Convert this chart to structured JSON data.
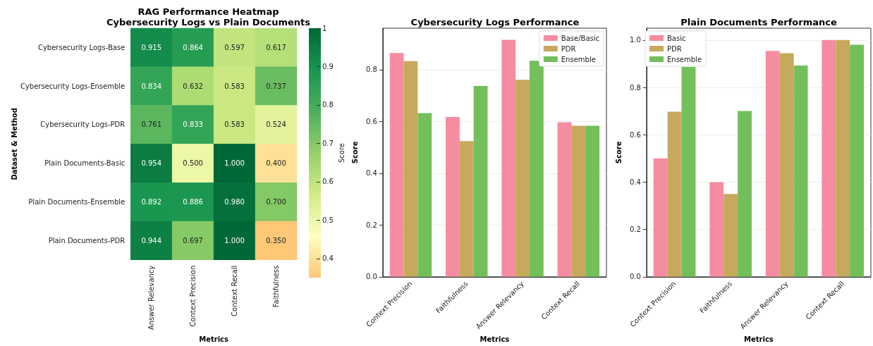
{
  "chart_data": [
    {
      "type": "heatmap",
      "title": "RAG Performance Heatmap\nCybersecurity Logs vs Plain Documents",
      "xlabel": "Metrics",
      "ylabel": "Dataset & Method",
      "clabel": "Score",
      "categories": [
        "Answer Relevancy",
        "Context Precision",
        "Context Recall",
        "Faithfulness"
      ],
      "y_categories": [
        "Cybersecurity Logs-Base",
        "Cybersecurity Logs-Ensemble",
        "Cybersecurity Logs-PDR",
        "Plain Documents-Basic",
        "Plain Documents-Ensemble",
        "Plain Documents-PDR"
      ],
      "cells": [
        [
          0.915,
          0.864,
          0.597,
          0.617
        ],
        [
          0.834,
          0.632,
          0.583,
          0.737
        ],
        [
          0.761,
          0.833,
          0.583,
          0.524
        ],
        [
          0.954,
          0.5,
          1.0,
          0.4
        ],
        [
          0.892,
          0.886,
          0.98,
          0.7
        ],
        [
          0.944,
          0.697,
          1.0,
          0.35
        ]
      ],
      "cell_labels": [
        [
          "0.915",
          "0.864",
          "0.597",
          "0.617"
        ],
        [
          "0.834",
          "0.632",
          "0.583",
          "0.737"
        ],
        [
          "0.761",
          "0.833",
          "0.583",
          "0.524"
        ],
        [
          "0.954",
          "0.500",
          "1.000",
          "0.400"
        ],
        [
          "0.892",
          "0.886",
          "0.980",
          "0.700"
        ],
        [
          "0.944",
          "0.697",
          "1.000",
          "0.350"
        ]
      ],
      "clim": [
        0.35,
        1.0
      ],
      "cticks": [
        0.4,
        0.5,
        0.6,
        0.7,
        0.8,
        0.9,
        1.0
      ]
    },
    {
      "type": "bar",
      "title": "Cybersecurity Logs Performance",
      "xlabel": "Metrics",
      "ylabel": "Score",
      "categories": [
        "Context Precision",
        "Faithfulness",
        "Answer Relevancy",
        "Context Recall"
      ],
      "series": [
        {
          "name": "Base/Basic",
          "color": "#f68c9f",
          "values": [
            0.864,
            0.617,
            0.915,
            0.597
          ]
        },
        {
          "name": "PDR",
          "color": "#c6a95c",
          "values": [
            0.833,
            0.524,
            0.761,
            0.583
          ]
        },
        {
          "name": "Ensemble",
          "color": "#73bf5b",
          "values": [
            0.632,
            0.737,
            0.834,
            0.583
          ]
        }
      ],
      "ylim": [
        0,
        0.96
      ],
      "yticks": [
        {
          "value": 0,
          "label": "0.0"
        },
        {
          "value": 0.2,
          "label": "0.2"
        },
        {
          "value": 0.4,
          "label": "0.4"
        },
        {
          "value": 0.6,
          "label": "0.6"
        },
        {
          "value": 0.8,
          "label": "0.8"
        }
      ],
      "grid": "y",
      "legend": "top right"
    },
    {
      "type": "bar",
      "title": "Plain Documents Performance",
      "xlabel": "Metrics",
      "ylabel": "Score",
      "categories": [
        "Context Precision",
        "Faithfulness",
        "Answer Relevancy",
        "Context Recall"
      ],
      "series": [
        {
          "name": "Basic",
          "color": "#f68c9f",
          "values": [
            0.5,
            0.4,
            0.954,
            1.0
          ]
        },
        {
          "name": "PDR",
          "color": "#c6a95c",
          "values": [
            0.697,
            0.35,
            0.944,
            1.0
          ]
        },
        {
          "name": "Ensemble",
          "color": "#73bf5b",
          "values": [
            0.886,
            0.7,
            0.892,
            0.98
          ]
        }
      ],
      "ylim": [
        0,
        1.05
      ],
      "yticks": [
        {
          "value": 0,
          "label": "0.0"
        },
        {
          "value": 0.2,
          "label": "0.2"
        },
        {
          "value": 0.4,
          "label": "0.4"
        },
        {
          "value": 0.6,
          "label": "0.6"
        },
        {
          "value": 0.8,
          "label": "0.8"
        },
        {
          "value": 1.0,
          "label": "1.0"
        }
      ],
      "grid": "y",
      "legend": "top left"
    }
  ]
}
